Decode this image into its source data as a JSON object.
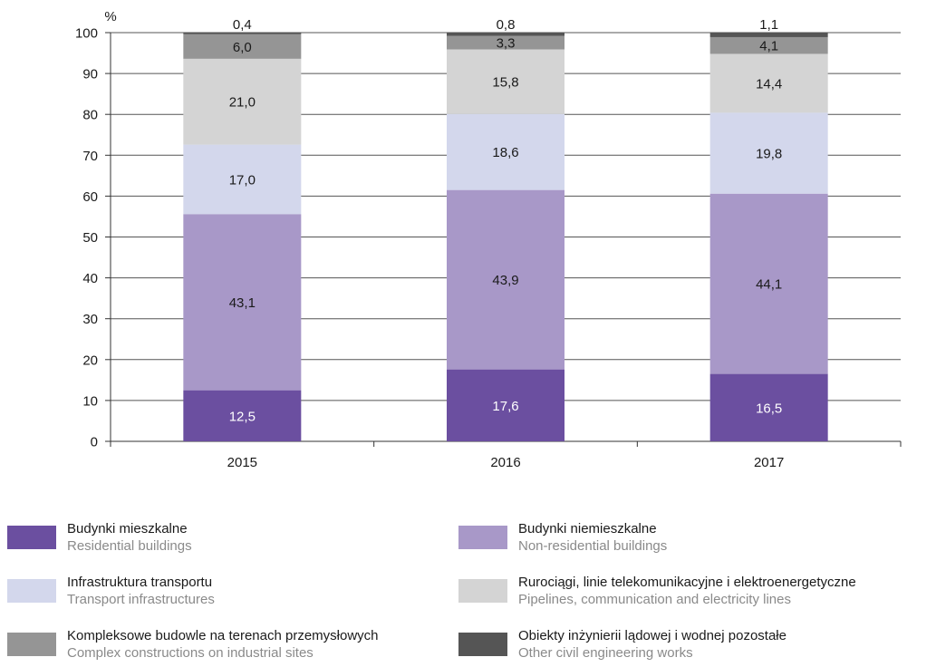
{
  "chart_data": {
    "type": "bar",
    "stacked": true,
    "ylabel": "%",
    "ylim": [
      0,
      100
    ],
    "yticks": [
      0,
      10,
      20,
      30,
      40,
      50,
      60,
      70,
      80,
      90,
      100
    ],
    "grid": true,
    "categories": [
      "2015",
      "2016",
      "2017"
    ],
    "series": [
      {
        "name": "Budynki mieszkalne",
        "name_en": "Residential buildings",
        "color": "#6b4fa0",
        "label_color": "#ffffff",
        "values": [
          12.5,
          17.6,
          16.5
        ],
        "labels": [
          "12,5",
          "17,6",
          "16,5"
        ]
      },
      {
        "name": "Budynki niemieszkalne",
        "name_en": "Non-residential buildings",
        "color": "#a898c8",
        "label_color": "#1a1a1a",
        "values": [
          43.1,
          43.9,
          44.1
        ],
        "labels": [
          "43,1",
          "43,9",
          "44,1"
        ]
      },
      {
        "name": "Infrastruktura transportu",
        "name_en": "Transport infrastructures",
        "color": "#d3d7ec",
        "label_color": "#1a1a1a",
        "values": [
          17.0,
          18.6,
          19.8
        ],
        "labels": [
          "17,0",
          "18,6",
          "19,8"
        ]
      },
      {
        "name": "Rurociągi, linie telekomunikacyjne i elektroenergetyczne",
        "name_en": "Pipelines, communication and electricity lines",
        "color": "#d4d4d4",
        "label_color": "#1a1a1a",
        "values": [
          21.0,
          15.8,
          14.4
        ],
        "labels": [
          "21,0",
          "15,8",
          "14,4"
        ]
      },
      {
        "name": "Kompleksowe budowle na terenach przemysłowych",
        "name_en": "Complex constructions on industrial sites",
        "color": "#959595",
        "label_color": "#1a1a1a",
        "values": [
          6.0,
          3.3,
          4.1
        ],
        "labels": [
          "6,0",
          "3,3",
          "4,1"
        ]
      },
      {
        "name": "Obiekty inżynierii lądowej i wodnej pozostałe",
        "name_en": "Other civil engineering works",
        "color": "#555555",
        "label_color": "#1a1a1a",
        "values": [
          0.4,
          0.8,
          1.1
        ],
        "labels": [
          "0,4",
          "0,8",
          "1,1"
        ]
      }
    ],
    "legend_position": "bottom, two columns"
  }
}
